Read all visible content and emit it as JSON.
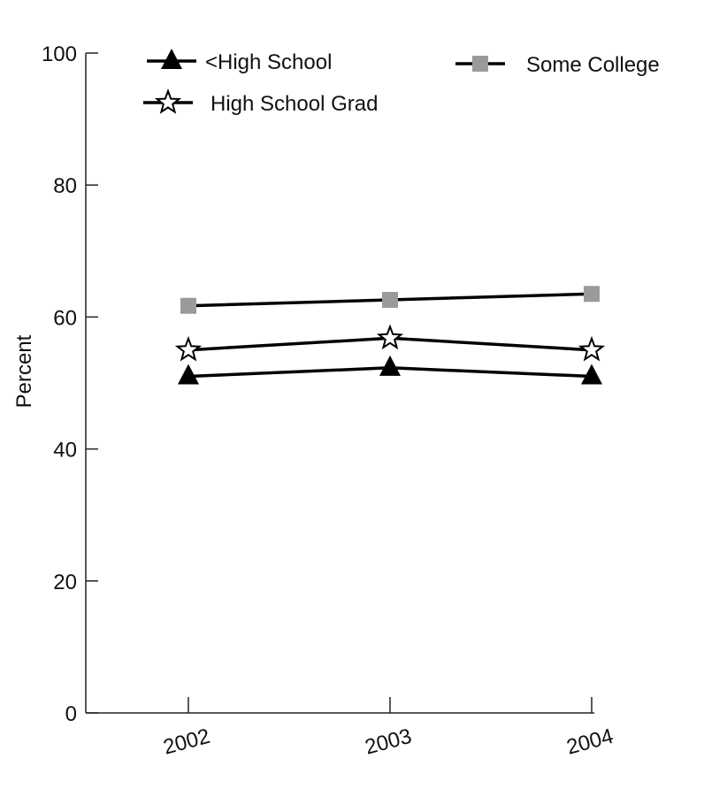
{
  "chart_data": {
    "type": "line",
    "title": "",
    "xlabel": "",
    "ylabel": "Percent",
    "x": [
      "2002",
      "2003",
      "2004"
    ],
    "ylim": [
      0,
      100
    ],
    "yticks": [
      0,
      20,
      40,
      60,
      80,
      100
    ],
    "grid": false,
    "legend_placement": "top",
    "series": [
      {
        "name": "<High School",
        "marker": "triangle",
        "color": "#000000",
        "values": [
          51.0,
          52.3,
          51.0
        ]
      },
      {
        "name": "High School Grad",
        "marker": "star",
        "color": "#000000",
        "values": [
          55.0,
          56.8,
          55.0
        ]
      },
      {
        "name": "Some College",
        "marker": "square",
        "color": "#9a9a9a",
        "values": [
          61.7,
          62.6,
          63.5
        ]
      }
    ]
  }
}
